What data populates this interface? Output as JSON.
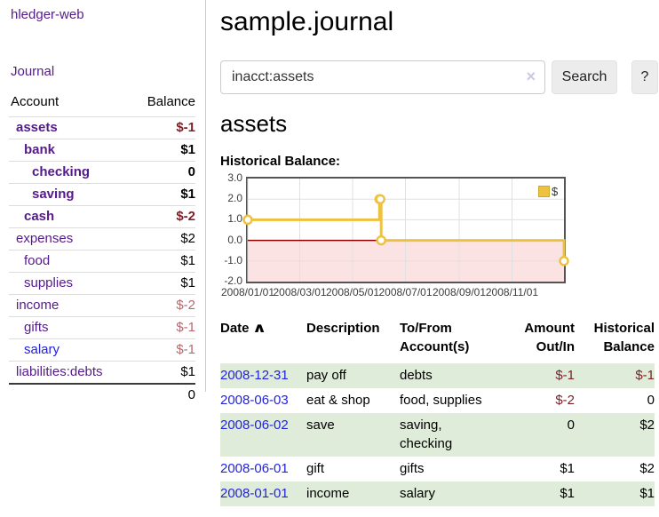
{
  "app": {
    "title": "hledger-web",
    "nav_journal": "Journal"
  },
  "colors": {
    "link_purple": "#551a8b",
    "link_blue": "#2323dd",
    "negative_strong": "#7d2027",
    "negative_soft": "#b5686f",
    "row_highlight_green": "#dfecd9",
    "chart_line_gold": "#edc240"
  },
  "sidebar": {
    "headers": {
      "account": "Account",
      "balance": "Balance"
    },
    "accounts": [
      {
        "name": "assets",
        "indent": 1,
        "bold": true,
        "balance": "$-1",
        "tone": "neg-strong"
      },
      {
        "name": "bank",
        "indent": 2,
        "bold": true,
        "balance": "$1",
        "tone": ""
      },
      {
        "name": "checking",
        "indent": 3,
        "bold": true,
        "balance": "0",
        "tone": ""
      },
      {
        "name": "saving",
        "indent": 3,
        "bold": true,
        "balance": "$1",
        "tone": ""
      },
      {
        "name": "cash",
        "indent": 2,
        "bold": true,
        "balance": "$-2",
        "tone": "neg-strong"
      },
      {
        "name": "expenses",
        "indent": 1,
        "bold": false,
        "balance": "$2",
        "tone": ""
      },
      {
        "name": "food",
        "indent": 2,
        "bold": false,
        "balance": "$1",
        "tone": ""
      },
      {
        "name": "supplies",
        "indent": 2,
        "bold": false,
        "balance": "$1",
        "tone": ""
      },
      {
        "name": "income",
        "indent": 1,
        "bold": false,
        "balance": "$-2",
        "tone": "neg-soft"
      },
      {
        "name": "gifts",
        "indent": 2,
        "bold": false,
        "balance": "$-1",
        "tone": "neg-soft"
      },
      {
        "name": "salary",
        "indent": 2,
        "bold": false,
        "balance": "$-1",
        "tone": "neg-soft",
        "link_style": "blue"
      },
      {
        "name": "liabilities:debts",
        "indent": 1,
        "bold": false,
        "balance": "$1",
        "tone": ""
      }
    ],
    "total": "0"
  },
  "main": {
    "title": "sample.journal",
    "search": {
      "value": "inacct:assets",
      "clear_icon": "×",
      "button_label": "Search",
      "help_label": "?"
    },
    "account_heading": "assets",
    "register": {
      "headers": {
        "date": "Date",
        "description": "Description",
        "tofrom": "To/From\nAccount(s)",
        "amount": "Amount\nOut/In",
        "balance": "Historical\nBalance"
      },
      "icons": {
        "sort_ascending": "∧"
      },
      "rows": [
        {
          "date": "2008-12-31",
          "description": "pay off",
          "accounts": "debts",
          "amount": "$-1",
          "amount_negative": true,
          "balance": "$-1",
          "balance_negative": true
        },
        {
          "date": "2008-06-03",
          "description": "eat & shop",
          "accounts": "food, supplies",
          "amount": "$-2",
          "amount_negative": true,
          "balance": "0",
          "balance_negative": false
        },
        {
          "date": "2008-06-02",
          "description": "save",
          "accounts": "saving, checking",
          "amount": "0",
          "amount_negative": false,
          "balance": "$2",
          "balance_negative": false
        },
        {
          "date": "2008-06-01",
          "description": "gift",
          "accounts": "gifts",
          "amount": "$1",
          "amount_negative": false,
          "balance": "$2",
          "balance_negative": false
        },
        {
          "date": "2008-01-01",
          "description": "income",
          "accounts": "salary",
          "amount": "$1",
          "amount_negative": false,
          "balance": "$1",
          "balance_negative": false
        }
      ]
    }
  },
  "chart_data": {
    "type": "line",
    "title": "Historical Balance:",
    "step": true,
    "series": [
      {
        "name": "$",
        "points": [
          [
            "2008/01/01",
            1
          ],
          [
            "2008/06/01",
            2
          ],
          [
            "2008/06/02",
            2
          ],
          [
            "2008/06/03",
            0
          ],
          [
            "2008/12/31",
            -1
          ]
        ]
      }
    ],
    "x_range": [
      "2008/01/01",
      "2008/12/31"
    ],
    "x_ticks": [
      "2008/01/01",
      "2008/03/01",
      "2008/05/01",
      "2008/07/01",
      "2008/09/01",
      "2008/11/01"
    ],
    "y_ticks": [
      3,
      2,
      1,
      0,
      -1,
      -2
    ],
    "y_tick_labels": [
      "3.0",
      "2.0",
      "1.0",
      "0.0",
      "-1.0",
      "-2.0"
    ],
    "ylim": [
      -2,
      3
    ],
    "legend": {
      "label": "$",
      "position": "top-right"
    },
    "grid": true,
    "colors": {
      "line": "#edc240",
      "negative_region": "#fbe3e3",
      "zero_line": "#8b0000",
      "grid": "#e0e0e0",
      "border": "#545454"
    }
  }
}
